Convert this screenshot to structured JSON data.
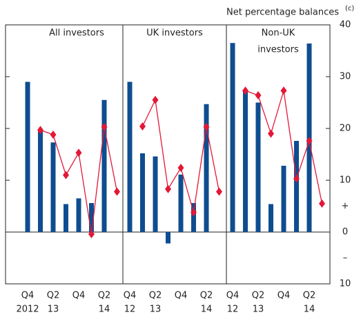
{
  "chart_data": {
    "type": "bar",
    "y_label": "Net percentage balances",
    "y_label_note": "(c)",
    "ylim": [
      -10,
      40
    ],
    "yticks": [
      40,
      30,
      20,
      10,
      0,
      {
        "value": -10,
        "label": "10"
      }
    ],
    "sign_labels": [
      {
        "value": 5,
        "label": "+"
      },
      {
        "value": -5,
        "label": "–"
      }
    ],
    "panels": [
      {
        "title": [
          "All investors"
        ],
        "categories": [
          "Q4",
          null,
          "Q2",
          null,
          "Q4",
          null,
          "Q2",
          null
        ],
        "year_labels": [
          "2012",
          null,
          "13",
          null,
          null,
          null,
          "14",
          null
        ],
        "series": [
          {
            "type": "bar",
            "color": "#0e4d8f",
            "values": [
              29,
              19.5,
              17.3,
              5.4,
              6.5,
              5.6,
              25.5,
              null
            ]
          },
          {
            "type": "line",
            "color": "#e31837",
            "values": [
              null,
              19.7,
              18.8,
              11,
              15.3,
              -0.4,
              20.3,
              7.8
            ]
          }
        ]
      },
      {
        "title": [
          "UK investors"
        ],
        "categories": [
          "Q4",
          null,
          "Q2",
          null,
          "Q4",
          null,
          "Q2",
          null
        ],
        "year_labels": [
          "12",
          null,
          "13",
          null,
          null,
          null,
          "14",
          null
        ],
        "series": [
          {
            "type": "bar",
            "color": "#0e4d8f",
            "values": [
              29,
              15.2,
              14.6,
              -2.2,
              11.1,
              5.6,
              24.7,
              null
            ]
          },
          {
            "type": "line",
            "color": "#e31837",
            "values": [
              null,
              20.4,
              25.5,
              8.3,
              12.4,
              3.8,
              20.3,
              7.8
            ]
          }
        ]
      },
      {
        "title": [
          "Non-UK",
          "investors"
        ],
        "categories": [
          "Q4",
          null,
          "Q2",
          null,
          "Q4",
          null,
          "Q2",
          null
        ],
        "year_labels": [
          "12",
          null,
          "13",
          null,
          null,
          null,
          "14",
          null
        ],
        "series": [
          {
            "type": "bar",
            "color": "#0e4d8f",
            "values": [
              36.5,
              27.3,
              25,
              5.4,
              12.8,
              17.6,
              36.4,
              null
            ]
          },
          {
            "type": "line",
            "color": "#e31837",
            "values": [
              null,
              27.3,
              26.4,
              19,
              27.3,
              10.3,
              17.6,
              5.5
            ]
          }
        ]
      }
    ]
  }
}
